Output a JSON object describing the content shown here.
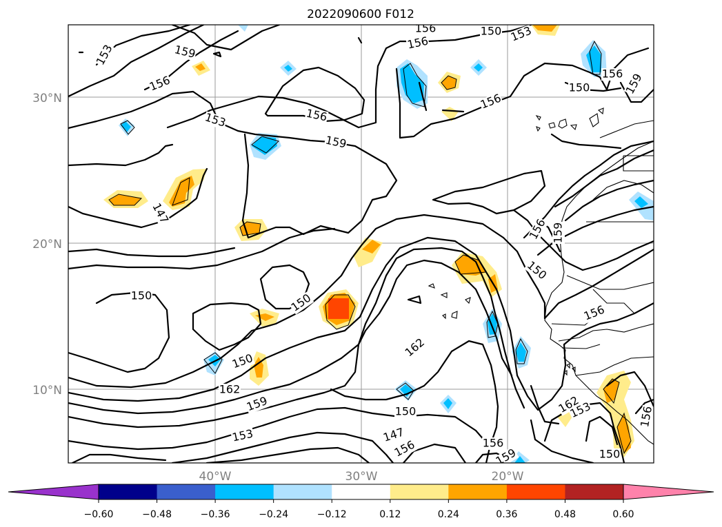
{
  "title": "2022090600 F012",
  "lat_labels": [
    "30°N",
    "20°N",
    "10°N"
  ],
  "lon_labels": [
    "40°W",
    "30°W",
    "20°W"
  ],
  "contour_labels": [
    "153",
    "159",
    "156",
    "153",
    "156",
    "150",
    "156",
    "159",
    "153",
    "156",
    "147",
    "156",
    "159",
    "150",
    "150",
    "150",
    "150",
    "156",
    "162",
    "162",
    "159",
    "153",
    "150",
    "147",
    "156",
    "156",
    "159",
    "162",
    "153",
    "150",
    "150",
    "156",
    "159",
    "156",
    "156"
  ],
  "colorbar": {
    "ticks": [
      "−0.60",
      "−0.48",
      "−0.36",
      "−0.24",
      "−0.12",
      "0.12",
      "0.24",
      "0.36",
      "0.48",
      "0.60"
    ],
    "colors": [
      "#9932cc",
      "#00008b",
      "#3a5fcd",
      "#00bfff",
      "#b0e2ff",
      "#ffffff",
      "#ffec8b",
      "#ffa500",
      "#ff4500",
      "#b22222",
      "#ff82ab"
    ]
  }
}
